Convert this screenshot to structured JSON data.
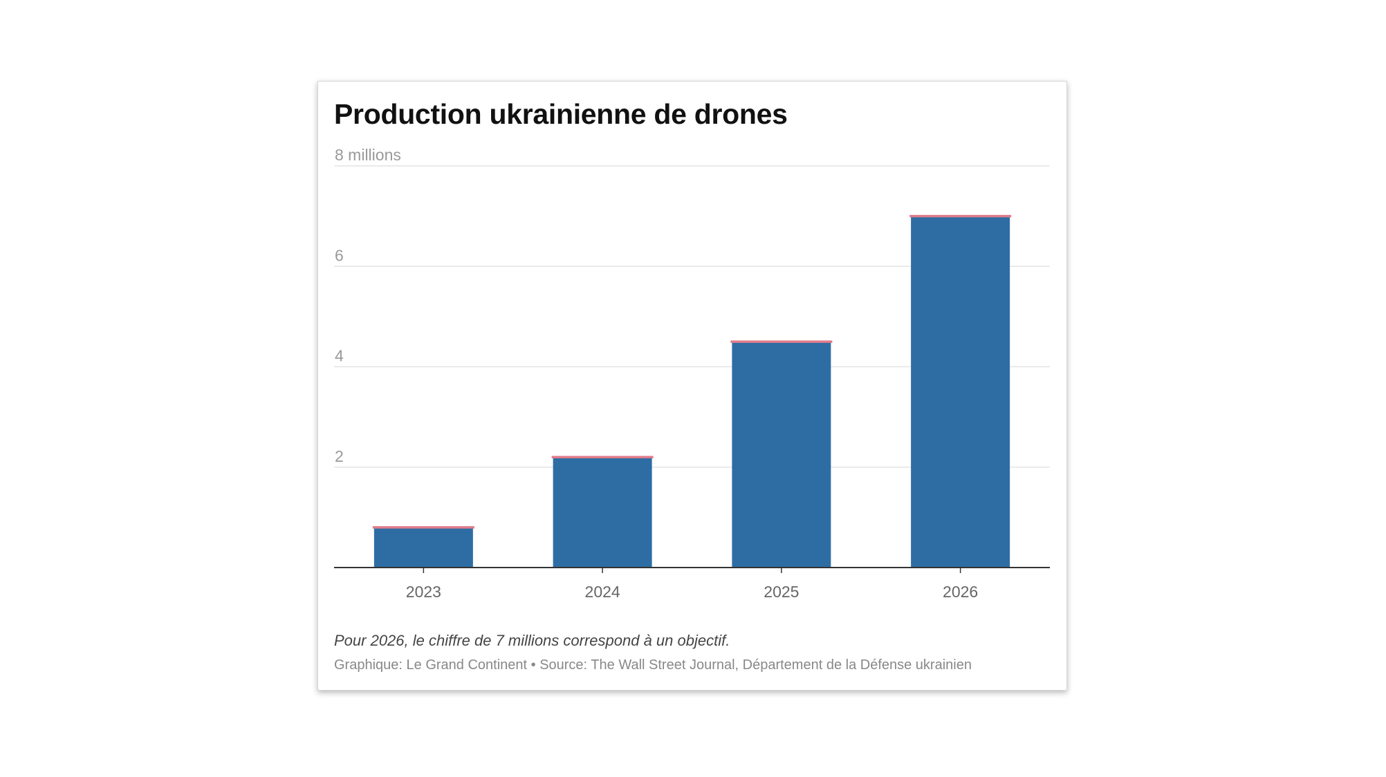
{
  "chart_data": {
    "type": "bar",
    "title": "Production ukrainienne de drones",
    "y_unit_label": "millions",
    "categories": [
      "2023",
      "2024",
      "2025",
      "2026"
    ],
    "values": [
      0.8,
      2.2,
      4.5,
      7.0
    ],
    "ylim": [
      0,
      8
    ],
    "yticks": [
      2,
      4,
      6,
      8
    ],
    "xlabel": "",
    "ylabel": "",
    "grid": true,
    "note": "Pour 2026, le chiffre de 7 millions correspond à un objectif.",
    "source": "Graphique: Le Grand Continent • Source: The Wall Street Journal, Département de la Défense ukrainien"
  },
  "colors": {
    "bar": "#2e6da4",
    "bar_cap": "#e07b8a",
    "grid": "#e4e4e4",
    "axis": "#333333"
  }
}
